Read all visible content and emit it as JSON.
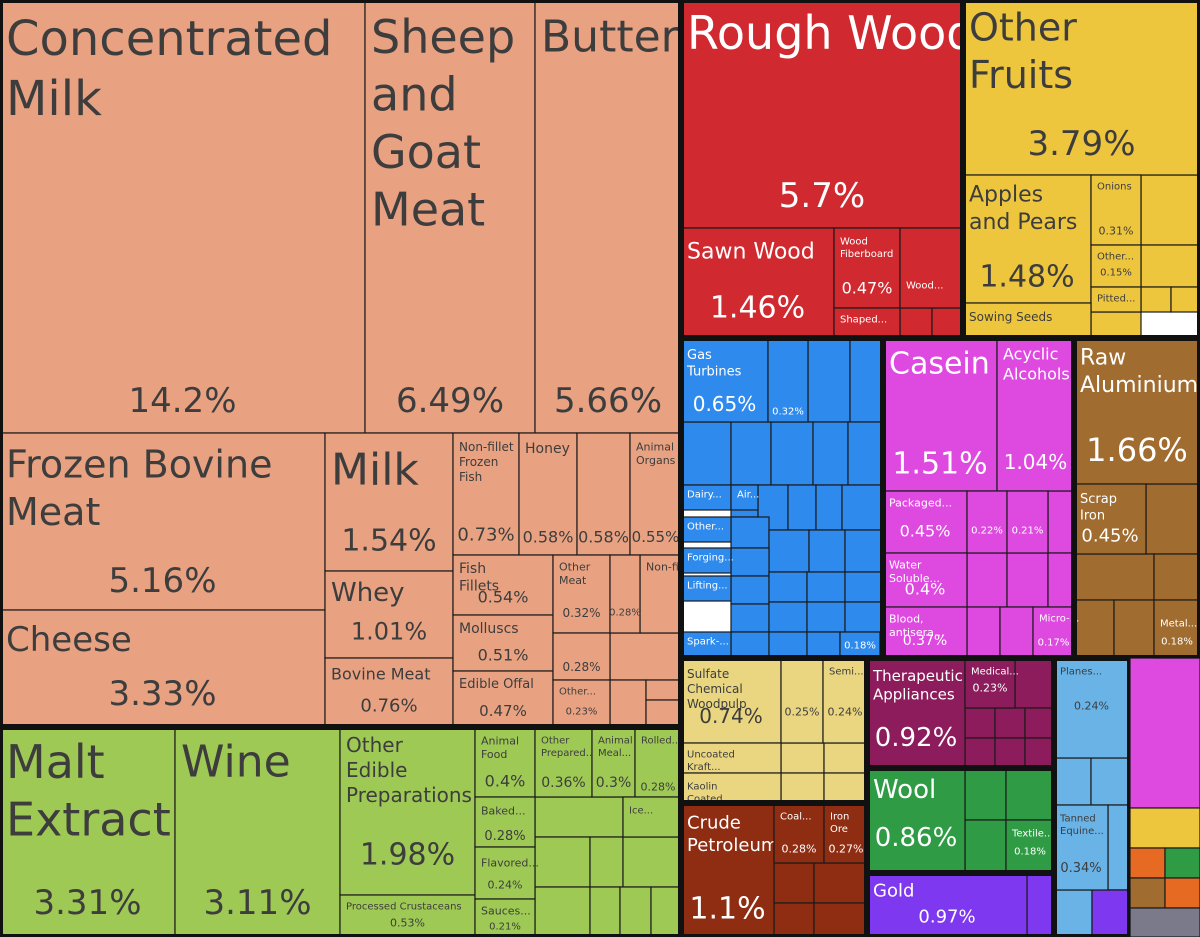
{
  "chart_data": {
    "type": "treemap",
    "value_unit": "% of exports",
    "colors": {
      "animal_products": "#e8a282",
      "vegetable_products": "#9fc955",
      "wood_products": "#d0292f",
      "fruits": "#eec63e",
      "machines": "#2f8aed",
      "chemicals": "#de49e0",
      "metals": "#a06c2f",
      "paper": "#ead680",
      "instruments": "#8d1c5c",
      "textiles": "#2f9c45",
      "precious_metals": "#7e39f0",
      "mineral_products": "#8e2d12",
      "transportation": "#6ab3e6"
    },
    "groups": [
      {
        "key": "animal_products",
        "items": [
          {
            "name": "Concentrated Milk",
            "value": "14.2%"
          },
          {
            "name": "Sheep and Goat Meat",
            "value": "6.49%"
          },
          {
            "name": "Butter",
            "value": "5.66%"
          },
          {
            "name": "Frozen Bovine Meat",
            "value": "5.16%"
          },
          {
            "name": "Cheese",
            "value": "3.33%"
          },
          {
            "name": "Milk",
            "value": "1.54%"
          },
          {
            "name": "Whey",
            "value": "1.01%"
          },
          {
            "name": "Bovine Meat",
            "value": "0.76%"
          },
          {
            "name": "Non-fillet Frozen Fish",
            "value": "0.73%"
          },
          {
            "name": "Honey",
            "value": "0.58%"
          },
          {
            "name": "",
            "value": "0.58%"
          },
          {
            "name": "Animal Organs",
            "value": "0.55%"
          },
          {
            "name": "Fish Fillets",
            "value": "0.54%"
          },
          {
            "name": "Molluscs",
            "value": "0.51%"
          },
          {
            "name": "Edible Offal",
            "value": "0.47%"
          },
          {
            "name": "Other Meat",
            "value": "0.32%"
          },
          {
            "name": "",
            "value": "0.28%"
          },
          {
            "name": "Non-fillet...",
            "value": ""
          },
          {
            "name": "",
            "value": "0.28%"
          },
          {
            "name": "Other...",
            "value": "0.23%"
          }
        ]
      },
      {
        "key": "vegetable_products",
        "items": [
          {
            "name": "Malt Extract",
            "value": "3.31%"
          },
          {
            "name": "Wine",
            "value": "3.11%"
          },
          {
            "name": "Other Edible Preparations",
            "value": "1.98%"
          },
          {
            "name": "Processed Crustaceans",
            "value": "0.53%"
          },
          {
            "name": "Animal Food",
            "value": "0.4%"
          },
          {
            "name": "Other Prepared...",
            "value": "0.36%"
          },
          {
            "name": "Animal Meal...",
            "value": "0.3%"
          },
          {
            "name": "Rolled...",
            "value": "0.28%"
          },
          {
            "name": "Baked...",
            "value": "0.28%"
          },
          {
            "name": "Flavored...",
            "value": "0.24%"
          },
          {
            "name": "Sauces...",
            "value": "0.21%"
          },
          {
            "name": "Ice...",
            "value": ""
          }
        ]
      },
      {
        "key": "wood_products",
        "items": [
          {
            "name": "Rough Wood",
            "value": "5.7%"
          },
          {
            "name": "Sawn Wood",
            "value": "1.46%"
          },
          {
            "name": "Wood Fiberboard",
            "value": "0.47%"
          },
          {
            "name": "Wood...",
            "value": ""
          },
          {
            "name": "Shaped...",
            "value": ""
          }
        ]
      },
      {
        "key": "fruits",
        "items": [
          {
            "name": "Other Fruits",
            "value": "3.79%"
          },
          {
            "name": "Apples and Pears",
            "value": "1.48%"
          },
          {
            "name": "Onions",
            "value": "0.31%"
          },
          {
            "name": "Other...",
            "value": "0.15%"
          },
          {
            "name": "Pitted...",
            "value": ""
          },
          {
            "name": "Sowing Seeds",
            "value": ""
          }
        ]
      },
      {
        "key": "machines",
        "items": [
          {
            "name": "Gas Turbines",
            "value": "0.65%"
          },
          {
            "name": "",
            "value": "0.32%"
          },
          {
            "name": "Dairy...",
            "value": ""
          },
          {
            "name": "Air...",
            "value": ""
          },
          {
            "name": "Other...",
            "value": ""
          },
          {
            "name": "Forging...",
            "value": ""
          },
          {
            "name": "Lifting...",
            "value": ""
          },
          {
            "name": "Spark-...",
            "value": ""
          },
          {
            "name": "",
            "value": "0.18%"
          }
        ]
      },
      {
        "key": "chemicals",
        "items": [
          {
            "name": "Casein",
            "value": "1.51%"
          },
          {
            "name": "Acyclic Alcohols",
            "value": "1.04%"
          },
          {
            "name": "Packaged...",
            "value": "0.45%"
          },
          {
            "name": "",
            "value": "0.22%"
          },
          {
            "name": "",
            "value": "0.21%"
          },
          {
            "name": "Water Soluble...",
            "value": "0.4%"
          },
          {
            "name": "Blood, antisera...",
            "value": "0.37%"
          },
          {
            "name": "Micro-...",
            "value": "0.17%"
          }
        ]
      },
      {
        "key": "metals",
        "items": [
          {
            "name": "Raw Aluminium",
            "value": "1.66%"
          },
          {
            "name": "Scrap Iron",
            "value": "0.45%"
          },
          {
            "name": "Metal...",
            "value": "0.18%"
          }
        ]
      },
      {
        "key": "paper",
        "items": [
          {
            "name": "Sulfate Chemical Woodpulp",
            "value": "0.74%"
          },
          {
            "name": "",
            "value": "0.25%"
          },
          {
            "name": "Semi...",
            "value": "0.24%"
          },
          {
            "name": "Uncoated Kraft...",
            "value": ""
          },
          {
            "name": "Kaolin Coated...",
            "value": ""
          }
        ]
      },
      {
        "key": "instruments",
        "items": [
          {
            "name": "Therapeutic Appliances",
            "value": "0.92%"
          },
          {
            "name": "Medical...",
            "value": "0.23%"
          }
        ]
      },
      {
        "key": "textiles",
        "items": [
          {
            "name": "Wool",
            "value": "0.86%"
          },
          {
            "name": "Textile...",
            "value": "0.18%"
          }
        ]
      },
      {
        "key": "precious_metals",
        "items": [
          {
            "name": "Gold",
            "value": "0.97%"
          }
        ]
      },
      {
        "key": "mineral_products",
        "items": [
          {
            "name": "Crude Petroleum",
            "value": "1.1%"
          },
          {
            "name": "Coal...",
            "value": "0.28%"
          },
          {
            "name": "Iron Ore",
            "value": "0.27%"
          }
        ]
      },
      {
        "key": "transportation",
        "items": [
          {
            "name": "Planes...",
            "value": "0.24%"
          },
          {
            "name": "Tanned Equine...",
            "value": "0.34%"
          }
        ]
      }
    ]
  }
}
